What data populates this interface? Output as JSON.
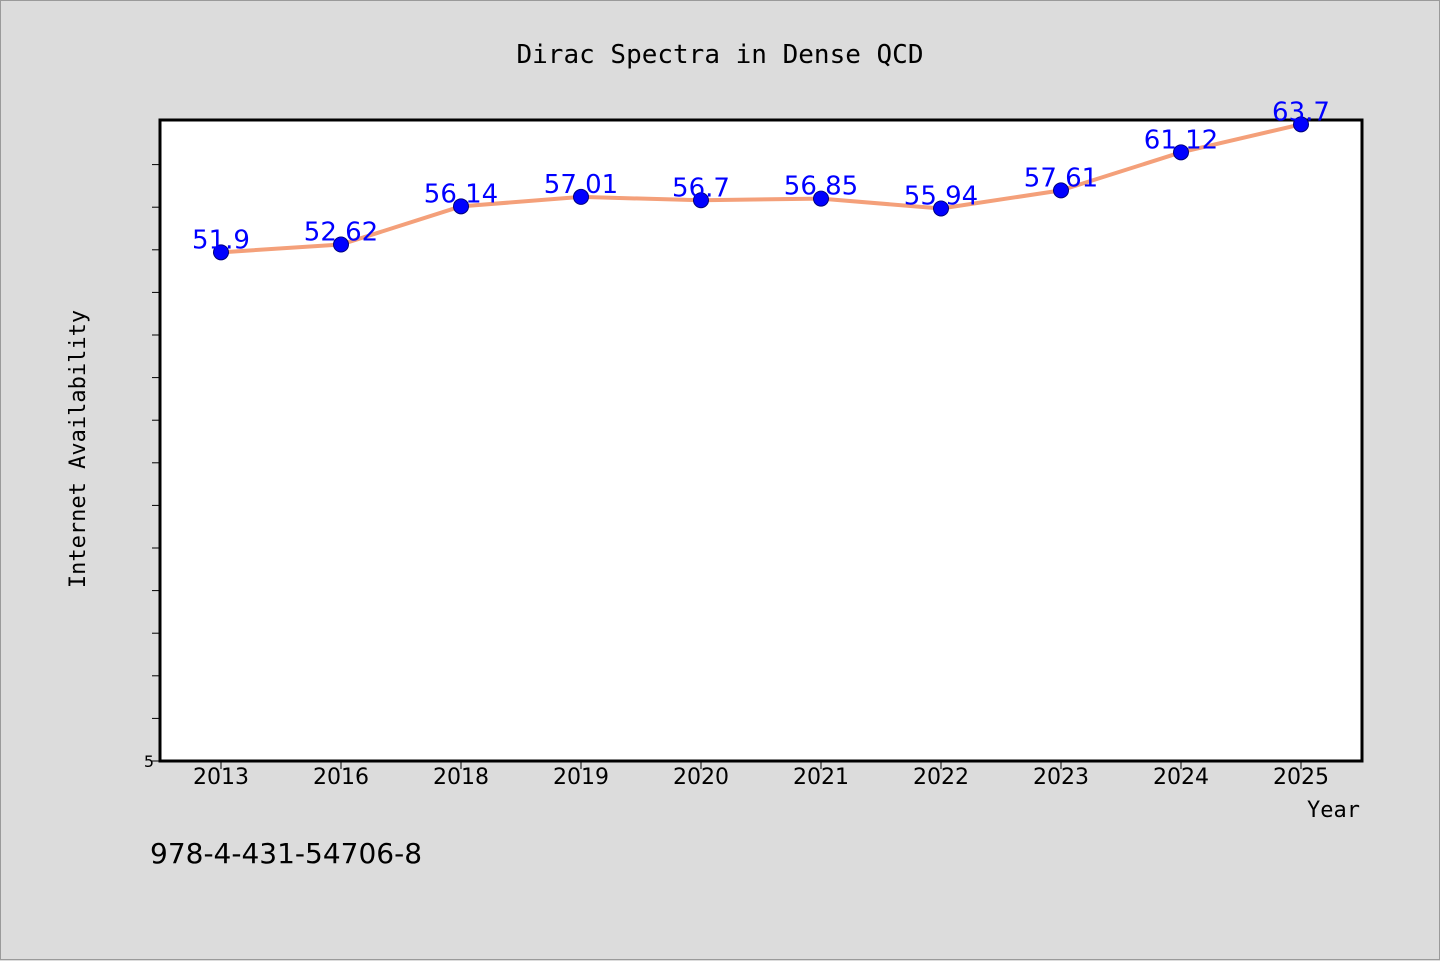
{
  "chart_data": {
    "type": "line",
    "title": "Dirac Spectra in Dense QCD",
    "xlabel": "Year",
    "ylabel": "Internet Availability",
    "categories": [
      "2013",
      "2016",
      "2018",
      "2019",
      "2020",
      "2021",
      "2022",
      "2023",
      "2024",
      "2025"
    ],
    "series": [
      {
        "values": [
          51.9,
          52.62,
          56.14,
          57.01,
          56.7,
          56.85,
          55.94,
          57.61,
          61.12,
          63.7
        ],
        "labels": [
          "51.9",
          "52.62",
          "56.14",
          "57.01",
          "56.7",
          "56.85",
          "55.94",
          "57.61",
          "61.12",
          "63.7"
        ],
        "line_color": "#f4a07a",
        "marker_color": "#0000ff"
      }
    ],
    "ylim": [
      5,
      64.1
    ],
    "y_tick_labels": [
      {
        "value": 5,
        "label": "5"
      }
    ],
    "grid": false,
    "legend": "none"
  },
  "annotation": {
    "isbn": "978-4-431-54706-8"
  },
  "colors": {
    "background": "#dcdcdc",
    "plot_background": "#ffffff",
    "line": "#f4a07a",
    "marker": "#0000ff",
    "data_label": "#0000ff"
  }
}
